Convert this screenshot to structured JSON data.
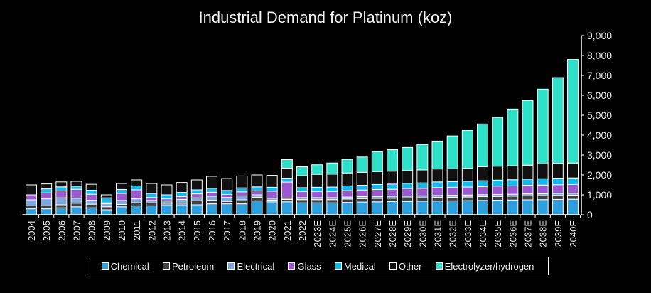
{
  "chart_data": {
    "type": "bar",
    "stacked": true,
    "title": "Industrial Demand for Platinum (koz)",
    "xlabel": "",
    "ylabel": "",
    "ylim": [
      0,
      9000
    ],
    "yticks": [
      0,
      1000,
      2000,
      3000,
      4000,
      5000,
      6000,
      7000,
      8000,
      9000
    ],
    "ytick_labels": [
      "0",
      "1,000",
      "2,000",
      "3,000",
      "4,000",
      "5,000",
      "6,000",
      "7,000",
      "8,000",
      "9,000"
    ],
    "y_axis_side": "right",
    "grid": false,
    "legend_position": "bottom",
    "categories": [
      "2004",
      "2005",
      "2006",
      "2007",
      "2008",
      "2009",
      "2010",
      "2011",
      "2012",
      "2013",
      "2014",
      "2015",
      "2016",
      "2017",
      "2018",
      "2019",
      "2020",
      "2021",
      "2022",
      "2023E",
      "2024E",
      "2025E",
      "2026E",
      "2027E",
      "2028E",
      "2029E",
      "2030E",
      "2031E",
      "2032E",
      "2033E",
      "2034E",
      "2035E",
      "2036E",
      "2037E",
      "2038E",
      "2039E",
      "2040E"
    ],
    "series": [
      {
        "name": "Chemical",
        "color": "#2e9fdc",
        "values": [
          300,
          300,
          350,
          400,
          350,
          250,
          400,
          450,
          450,
          500,
          500,
          500,
          550,
          550,
          550,
          700,
          650,
          650,
          600,
          600,
          600,
          620,
          640,
          650,
          660,
          670,
          680,
          690,
          700,
          710,
          720,
          730,
          740,
          750,
          760,
          770,
          780
        ]
      },
      {
        "name": "Petroleum",
        "color": "#404040",
        "values": [
          150,
          150,
          150,
          180,
          180,
          150,
          120,
          150,
          150,
          70,
          70,
          200,
          180,
          120,
          200,
          180,
          80,
          120,
          160,
          160,
          160,
          170,
          170,
          170,
          170,
          170,
          170,
          180,
          180,
          180,
          190,
          190,
          190,
          200,
          200,
          200,
          200
        ]
      },
      {
        "name": "Electrical",
        "color": "#7ea6e0",
        "values": [
          300,
          350,
          350,
          250,
          200,
          150,
          200,
          200,
          120,
          130,
          200,
          150,
          200,
          200,
          200,
          120,
          100,
          70,
          100,
          100,
          100,
          100,
          100,
          100,
          100,
          100,
          100,
          100,
          100,
          100,
          100,
          100,
          100,
          100,
          100,
          100,
          100
        ]
      },
      {
        "name": "Glass",
        "color": "#9b59d0",
        "values": [
          250,
          300,
          350,
          450,
          300,
          50,
          350,
          450,
          150,
          100,
          150,
          200,
          200,
          150,
          200,
          200,
          350,
          800,
          300,
          300,
          300,
          320,
          330,
          350,
          350,
          380,
          380,
          400,
          400,
          400,
          400,
          420,
          420,
          430,
          430,
          440,
          440
        ]
      },
      {
        "name": "Medical",
        "color": "#12b8f0",
        "values": [
          0,
          200,
          200,
          150,
          200,
          250,
          200,
          200,
          200,
          200,
          200,
          200,
          200,
          200,
          200,
          200,
          200,
          200,
          200,
          220,
          230,
          240,
          240,
          250,
          260,
          260,
          270,
          280,
          280,
          290,
          300,
          300,
          310,
          310,
          320,
          330,
          330
        ]
      },
      {
        "name": "Other",
        "color": "#111111",
        "values": [
          500,
          250,
          250,
          250,
          300,
          150,
          300,
          300,
          500,
          500,
          500,
          500,
          600,
          600,
          600,
          600,
          600,
          500,
          600,
          650,
          650,
          650,
          650,
          650,
          650,
          650,
          650,
          650,
          650,
          650,
          700,
          700,
          700,
          700,
          750,
          750,
          750
        ]
      },
      {
        "name": "Electrolyzer/hydrogen",
        "color": "#2ee0c8",
        "values": [
          0,
          0,
          0,
          0,
          0,
          0,
          0,
          0,
          0,
          0,
          0,
          0,
          0,
          0,
          0,
          0,
          0,
          430,
          450,
          480,
          560,
          680,
          770,
          1000,
          1080,
          1150,
          1280,
          1400,
          1650,
          1900,
          2150,
          2450,
          2850,
          3250,
          3750,
          4300,
          5200
        ]
      }
    ]
  },
  "legend": {
    "items": [
      {
        "label": "Chemical",
        "color": "#2e9fdc"
      },
      {
        "label": "Petroleum",
        "color": "#404040"
      },
      {
        "label": "Electrical",
        "color": "#7ea6e0"
      },
      {
        "label": "Glass",
        "color": "#9b59d0"
      },
      {
        "label": "Medical",
        "color": "#12b8f0"
      },
      {
        "label": "Other",
        "color": "#111111"
      },
      {
        "label": "Electrolyzer/hydrogen",
        "color": "#2ee0c8"
      }
    ]
  }
}
